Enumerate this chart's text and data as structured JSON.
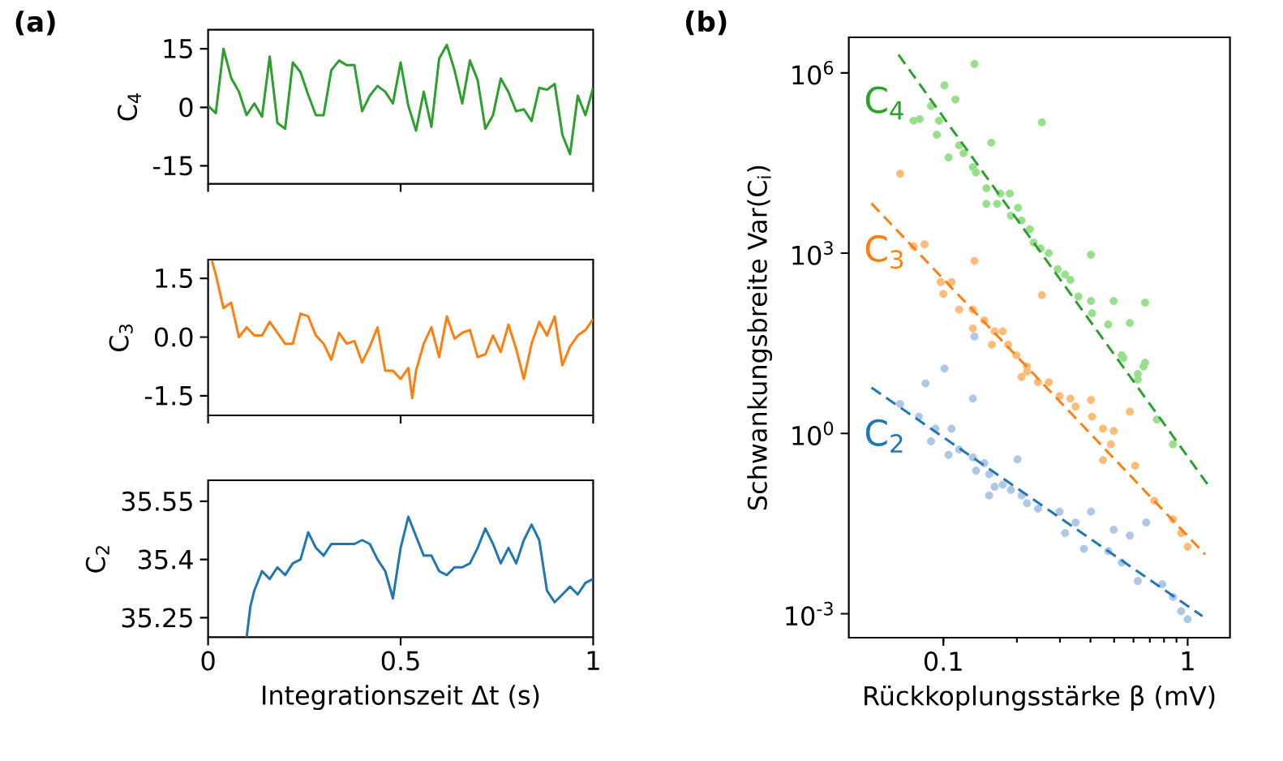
{
  "chart_data": [
    {
      "type": "line",
      "title": "(a)",
      "ylabel": "C$_{4}$",
      "xlim": [
        0,
        1
      ],
      "xticks": [
        0,
        0.5,
        1
      ],
      "ylim": [
        -19.6,
        19.9
      ],
      "yticks": [
        15,
        0,
        -15
      ],
      "tick_labels": "y",
      "series": [
        {
          "color": "#2ca02c",
          "x": [
            0,
            0.02,
            0.04,
            0.06,
            0.08,
            0.1,
            0.12,
            0.14,
            0.16,
            0.18,
            0.2,
            0.22,
            0.24,
            0.26,
            0.28,
            0.3,
            0.32,
            0.34,
            0.36,
            0.38,
            0.4,
            0.42,
            0.44,
            0.46,
            0.48,
            0.5,
            0.52,
            0.54,
            0.56,
            0.58,
            0.6,
            0.62,
            0.64,
            0.66,
            0.68,
            0.7,
            0.72,
            0.74,
            0.76,
            0.78,
            0.8,
            0.82,
            0.84,
            0.86,
            0.88,
            0.9,
            0.92,
            0.94,
            0.96,
            0.98,
            1
          ],
          "values": [
            0.4,
            -1.5,
            15,
            7.5,
            4,
            -2,
            1,
            -2.4,
            13,
            -4,
            -5.5,
            11.5,
            9,
            3.2,
            -2,
            -2,
            9.5,
            12,
            10.8,
            10.8,
            -1,
            3,
            5.5,
            4,
            1,
            11.5,
            0.4,
            -6,
            4,
            -5,
            12.5,
            16,
            9.5,
            1,
            12,
            7,
            -5.5,
            -2,
            7.4,
            3.9,
            -1,
            -0.5,
            -3.5,
            5,
            4.5,
            6,
            -7,
            -12,
            3,
            -2,
            5
          ]
        }
      ]
    },
    {
      "type": "line",
      "ylabel": "C$_{3}$",
      "xlim": [
        0,
        1
      ],
      "xticks": [
        0,
        0.5,
        1
      ],
      "ylim": [
        -2.0,
        1.98
      ],
      "yticks": [
        1.5,
        {
          "value": 0,
          "label": "0.0"
        },
        -1.5
      ],
      "tick_labels": "y",
      "series": [
        {
          "color": "#ff7f0e",
          "x": [
            0.01,
            0.02,
            0.04,
            0.06,
            0.08,
            0.1,
            0.12,
            0.14,
            0.16,
            0.18,
            0.2,
            0.22,
            0.24,
            0.26,
            0.28,
            0.3,
            0.32,
            0.34,
            0.36,
            0.38,
            0.4,
            0.42,
            0.44,
            0.46,
            0.48,
            0.5,
            0.52,
            0.53,
            0.54,
            0.56,
            0.58,
            0.6,
            0.62,
            0.64,
            0.66,
            0.68,
            0.7,
            0.72,
            0.74,
            0.76,
            0.78,
            0.8,
            0.82,
            0.84,
            0.86,
            0.88,
            0.9,
            0.92,
            0.94,
            0.96,
            0.98,
            1
          ],
          "values": [
            1.95,
            1.6,
            0.74,
            0.88,
            0,
            0.25,
            0.04,
            0.04,
            0.39,
            0.11,
            -0.17,
            -0.17,
            0.6,
            0.53,
            0.04,
            -0.17,
            -0.58,
            0.11,
            -0.17,
            -0.1,
            -0.65,
            -0.24,
            0.25,
            -0.86,
            -0.86,
            -1.07,
            -0.79,
            -1.56,
            -0.86,
            -0.17,
            0.25,
            -0.51,
            0.53,
            -0.04,
            0.11,
            0.18,
            -0.51,
            -0.44,
            0.04,
            -0.38,
            0.32,
            -0.3,
            -1.07,
            -0.17,
            0.39,
            0.04,
            0.53,
            -0.72,
            -0.24,
            0.04,
            0.18,
            0.46
          ]
        }
      ]
    },
    {
      "type": "line",
      "ylabel": "C$_{2}$",
      "xlabel": "Integrationszeit Δt (s)",
      "xlim": [
        0,
        1
      ],
      "xticks": [
        0,
        0.5,
        1
      ],
      "ylim": [
        35.2,
        35.604
      ],
      "yticks": [
        35.55,
        35.4,
        35.25
      ],
      "series": [
        {
          "color": "#1f77b4",
          "x": [
            0.1,
            0.11,
            0.12,
            0.14,
            0.16,
            0.18,
            0.2,
            0.22,
            0.24,
            0.26,
            0.28,
            0.3,
            0.32,
            0.34,
            0.36,
            0.38,
            0.4,
            0.42,
            0.44,
            0.46,
            0.48,
            0.5,
            0.52,
            0.54,
            0.56,
            0.58,
            0.6,
            0.62,
            0.64,
            0.66,
            0.68,
            0.7,
            0.72,
            0.74,
            0.76,
            0.78,
            0.8,
            0.82,
            0.84,
            0.86,
            0.88,
            0.9,
            0.92,
            0.94,
            0.96,
            0.98,
            1
          ],
          "values": [
            35.2,
            35.28,
            35.32,
            35.37,
            35.35,
            35.38,
            35.36,
            35.39,
            35.4,
            35.47,
            35.43,
            35.41,
            35.44,
            35.44,
            35.44,
            35.44,
            35.45,
            35.44,
            35.4,
            35.37,
            35.3,
            35.43,
            35.51,
            35.46,
            35.41,
            35.41,
            35.37,
            35.36,
            35.38,
            35.38,
            35.39,
            35.43,
            35.48,
            35.44,
            35.39,
            35.43,
            35.39,
            35.45,
            35.49,
            35.45,
            35.32,
            35.29,
            35.31,
            35.33,
            35.31,
            35.34,
            35.35
          ]
        }
      ]
    },
    {
      "type": "scatter",
      "title": "(b)",
      "xlabel": "Rückkoplungsstärke β (mV)",
      "ylabel": "Schwankungsbreite Var(C$_{i}$)",
      "log": "xy",
      "marker": "circle",
      "xlim": [
        0.041,
        1.49
      ],
      "xticks": [
        0.1,
        1
      ],
      "ylim": [
        0.0004,
        3900000
      ],
      "yticks": [
        {
          "value": 0.001,
          "label": "10$^{-3}$"
        },
        {
          "value": 1,
          "label": "10$^{0}$"
        },
        {
          "value": 1000,
          "label": "10$^{3}$"
        },
        {
          "value": 1000000,
          "label": "10$^{6}$"
        }
      ],
      "series": [
        {
          "color": "#98df8a",
          "x": [
            0.134,
            0.101,
            0.112,
            0.089,
            0.0755,
            0.08,
            0.096,
            0.094,
            0.253,
            0.157,
            0.116,
            0.121,
            0.105,
            0.132,
            0.136,
            0.15,
            0.171,
            0.187,
            0.15,
            0.166,
            0.202,
            0.189,
            0.209,
            0.226,
            0.234,
            0.25,
            0.27,
            0.402,
            0.294,
            0.315,
            0.331,
            0.357,
            0.402,
            0.498,
            0.669,
            0.406,
            0.473,
            0.58,
            0.537,
            0.669,
            0.625,
            0.546,
            0.659,
            0.625,
            0.748,
            0.871
          ],
          "values": [
            1400000,
            620000,
            360000,
            280000,
            160000,
            170000,
            160000,
            93000,
            150000,
            69000,
            62000,
            46000,
            39000,
            27000,
            22000,
            12000,
            9800,
            9800,
            6600,
            6600,
            5700,
            4200,
            3500,
            2500,
            1500,
            1200,
            1000,
            940,
            540,
            440,
            360,
            190,
            160,
            160,
            150,
            100,
            65,
            69,
            20,
            15,
            9.8,
            18,
            13,
            7.9,
            1.7,
            0.66
          ]
        },
        {
          "type": "line",
          "name": "C$_{4}$",
          "color": "#2ca02c",
          "marker": "none",
          "line_style": "dashed",
          "x": [
            0.0655,
            1.21
          ],
          "values": [
            2000000,
            0.14
          ]
        },
        {
          "color": "#ffbb78",
          "x": [
            0.0665,
            0.0755,
            0.0837,
            0.134,
            0.0975,
            0.108,
            0.1,
            0.116,
            0.132,
            0.253,
            0.132,
            0.147,
            0.162,
            0.175,
            0.158,
            0.184,
            0.199,
            0.22,
            0.209,
            0.244,
            0.22,
            0.27,
            0.299,
            0.331,
            0.348,
            0.402,
            0.406,
            0.45,
            0.498,
            0.485,
            0.45,
            0.58,
            0.61,
            0.73,
            0.871,
            0.94,
            1.0
          ],
          "values": [
            21000,
            1300,
            1400,
            740,
            330,
            330,
            210,
            115,
            115,
            200,
            56,
            76,
            50,
            50,
            30,
            30,
            20,
            13,
            8.7,
            7.1,
            10.7,
            7.1,
            4.2,
            3.8,
            2.8,
            3.6,
            1.9,
            1.2,
            1.1,
            0.66,
            0.36,
            2.3,
            0.29,
            0.076,
            0.037,
            0.022,
            0.013
          ]
        },
        {
          "type": "line",
          "name": "C$_{3}$",
          "color": "#ff7f0e",
          "marker": "none",
          "line_style": "dashed",
          "x": [
            0.0508,
            1.18
          ],
          "values": [
            6700,
            0.0097
          ]
        },
        {
          "color": "#aec7e8",
          "x": [
            0.134,
            0.101,
            0.0845,
            0.132,
            0.0665,
            0.0794,
            0.0927,
            0.108,
            0.089,
            0.105,
            0.116,
            0.132,
            0.147,
            0.136,
            0.154,
            0.201,
            0.175,
            0.162,
            0.189,
            0.154,
            0.209,
            0.22,
            0.244,
            0.299,
            0.402,
            0.348,
            0.315,
            0.498,
            0.58,
            0.676,
            0.376,
            0.473,
            0.537,
            0.625,
            0.787,
            0.871,
            0.94,
            1.0
          ],
          "values": [
            41,
            12,
            6.8,
            3.8,
            3.1,
            1.9,
            1.2,
            1.2,
            0.74,
            0.44,
            0.54,
            0.4,
            0.32,
            0.24,
            0.21,
            0.37,
            0.14,
            0.13,
            0.115,
            0.093,
            0.093,
            0.069,
            0.056,
            0.05,
            0.05,
            0.033,
            0.022,
            0.025,
            0.02,
            0.033,
            0.012,
            0.011,
            0.0071,
            0.0035,
            0.0031,
            0.0019,
            0.0011,
            0.00081
          ]
        },
        {
          "type": "line",
          "name": "C$_{2}$",
          "color": "#1f77b4",
          "marker": "none",
          "line_style": "dashed",
          "x": [
            0.0508,
            1.15
          ],
          "values": [
            5.8,
            0.00091
          ]
        }
      ]
    }
  ]
}
